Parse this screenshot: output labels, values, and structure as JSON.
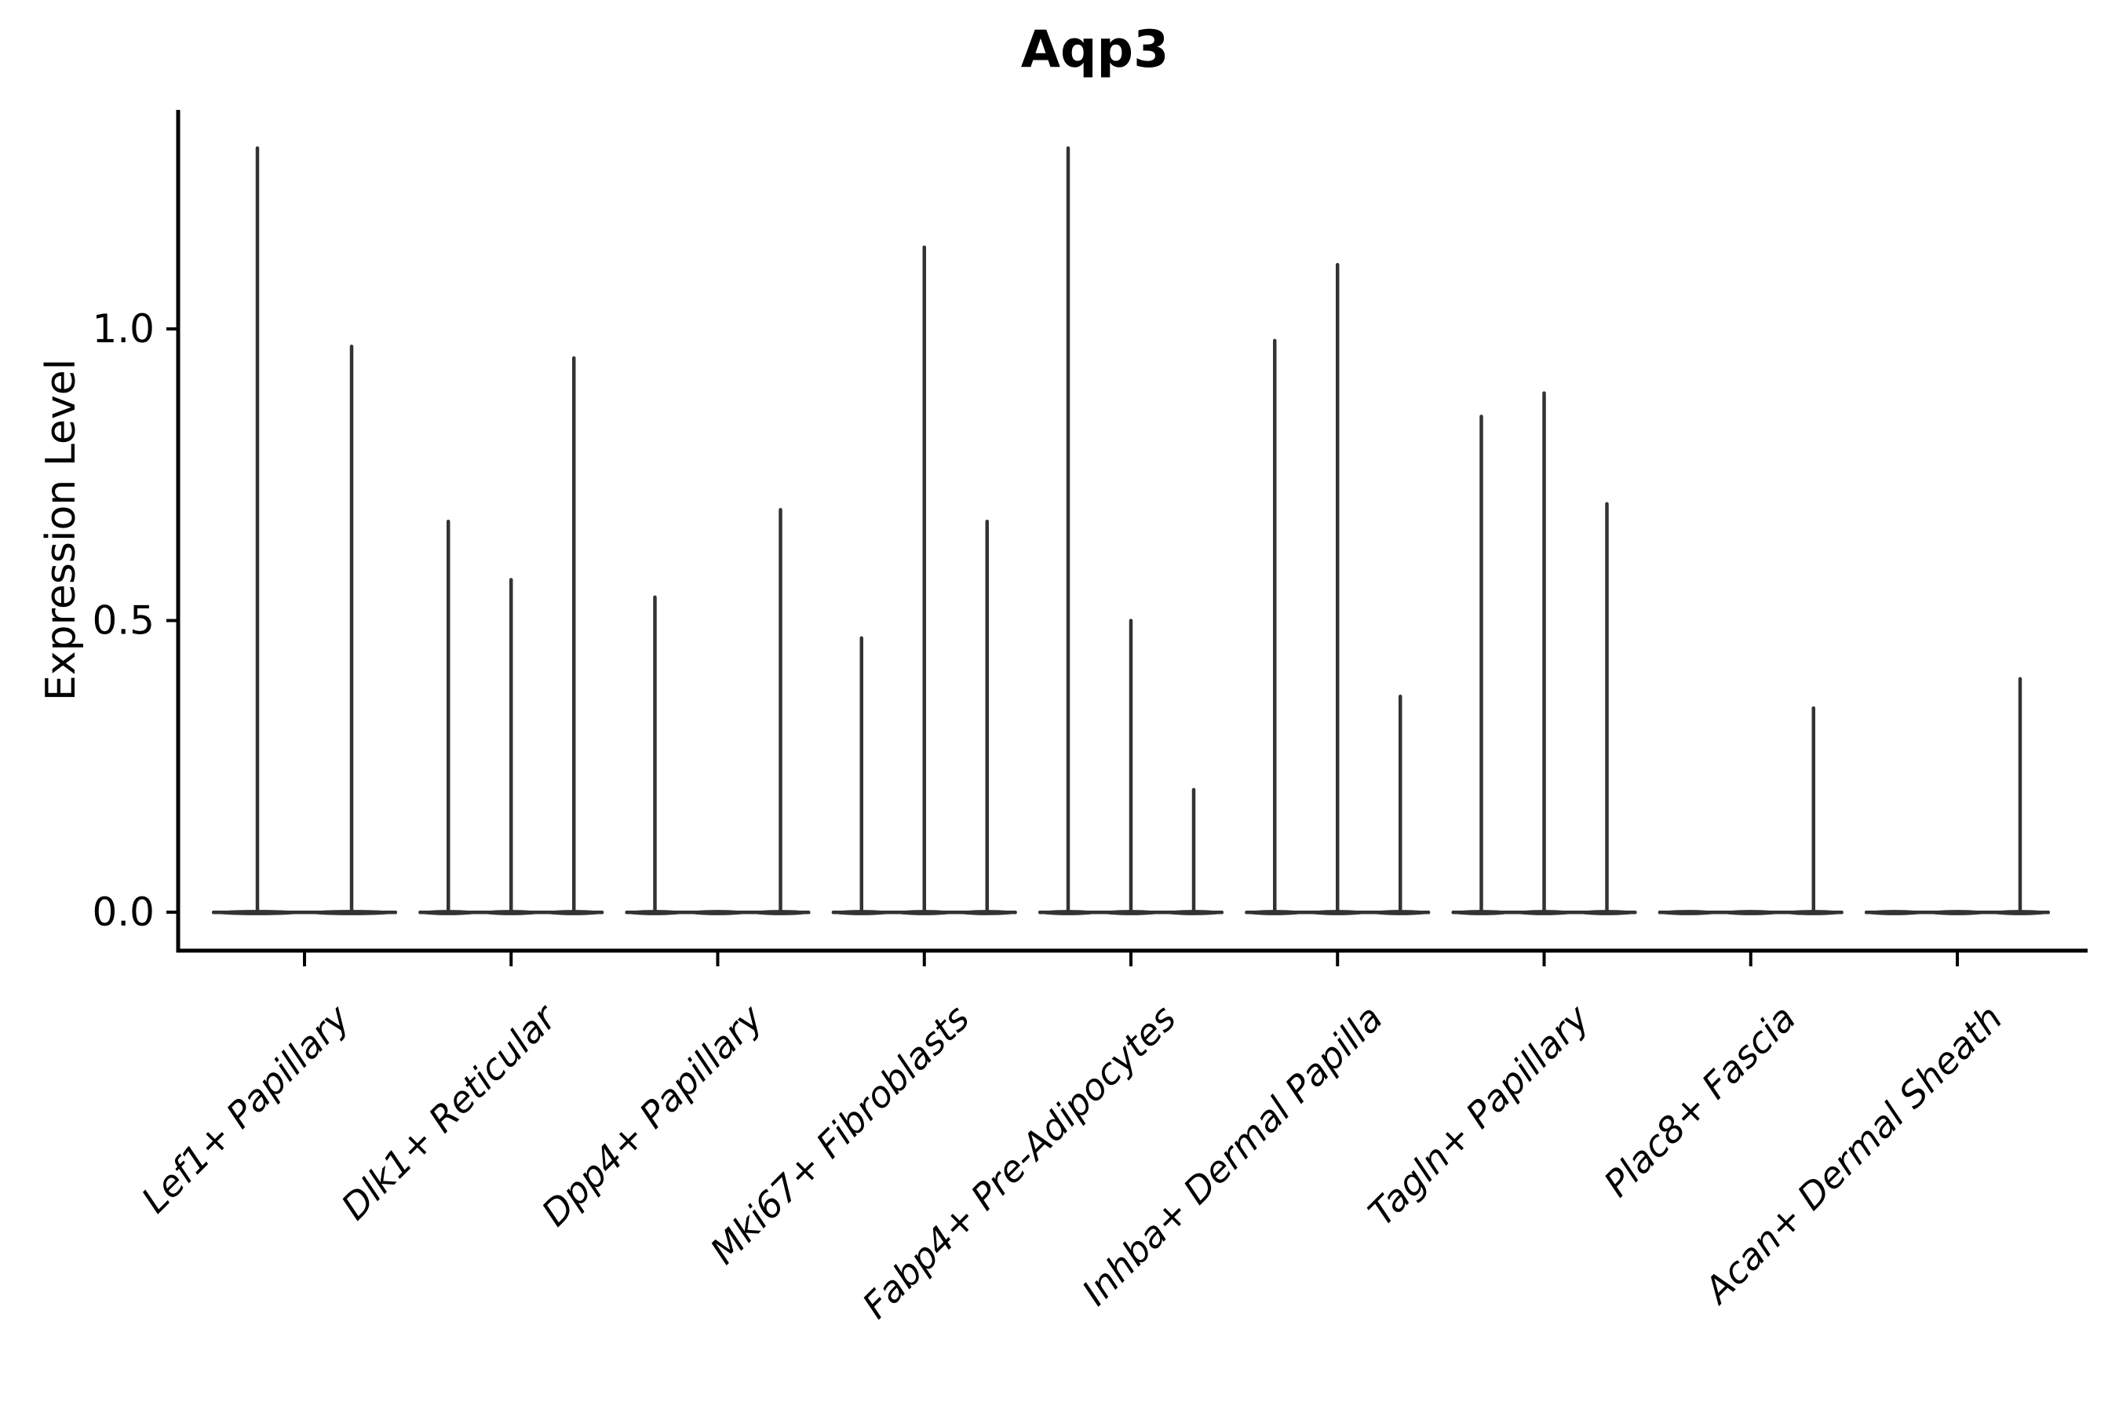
{
  "chart_data": {
    "type": "violin",
    "title": "Aqp3",
    "ylabel": "Expression Level",
    "xlabel": "",
    "ytick_labels": [
      "0.0",
      "0.5",
      "1.0"
    ],
    "ytick_values": [
      0.0,
      0.5,
      1.0
    ],
    "ylim": [
      -0.07,
      1.38
    ],
    "grid": false,
    "legend": "none",
    "x_label_rotation_deg": 45,
    "x_label_italic": true,
    "categories": [
      "Lef1+ Papillary",
      "Dlk1+ Reticular",
      "Dpp4+ Papillary",
      "Mki67+ Fibroblasts",
      "Fabp4+ Pre-Adipocytes",
      "Inhba+ Dermal Papilla",
      "Tagln+ Papillary",
      "Plac8+ Fascia",
      "Acan+ Dermal Sheath"
    ],
    "groups": [
      {
        "category": "Lef1+ Papillary",
        "violin_max_values": [
          1.31,
          0.97
        ]
      },
      {
        "category": "Dlk1+ Reticular",
        "violin_max_values": [
          0.67,
          0.57,
          0.95
        ]
      },
      {
        "category": "Dpp4+ Papillary",
        "violin_max_values": [
          0.54,
          0.0,
          0.69
        ]
      },
      {
        "category": "Mki67+ Fibroblasts",
        "violin_max_values": [
          0.47,
          1.14,
          0.67
        ]
      },
      {
        "category": "Fabp4+ Pre-Adipocytes",
        "violin_max_values": [
          1.31,
          0.5,
          0.21
        ]
      },
      {
        "category": "Inhba+ Dermal Papilla",
        "violin_max_values": [
          0.98,
          1.11,
          0.37
        ]
      },
      {
        "category": "Tagln+ Papillary",
        "violin_max_values": [
          0.85,
          0.89,
          0.7
        ]
      },
      {
        "category": "Plac8+ Fascia",
        "violin_max_values": [
          0.0,
          0.0,
          0.35
        ]
      },
      {
        "category": "Acan+ Dermal Sheath",
        "violin_max_values": [
          0.0,
          0.0,
          0.4
        ]
      }
    ],
    "colors": {
      "violin": "#333333",
      "axis": "#000000",
      "text": "#000000",
      "background": "#ffffff"
    }
  }
}
